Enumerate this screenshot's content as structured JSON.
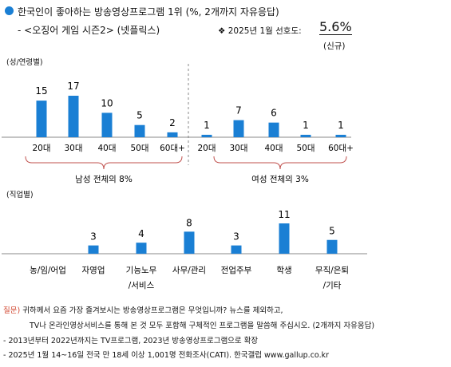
{
  "header": {
    "title": "한국인이 좋아하는 방송영상프로그램 1위",
    "title_note": "(%, 2개까지 자유응답)",
    "subtitle": "- <오징어 게임 시즌2> (넷플릭스)",
    "preference_label": "❖  2025년 1월 선호도:",
    "preference_value": "5.6%",
    "new_label": "(신규)"
  },
  "colors": {
    "bar": "#1a7fd4",
    "brace": "#c0504d",
    "axis": "#888888",
    "question": "#d0452e"
  },
  "chart_data": [
    {
      "type": "bar",
      "section_label": "(성/연령별)",
      "groups": [
        {
          "name": "남성 전체의 8%",
          "categories": [
            "20대",
            "30대",
            "40대",
            "50대",
            "60대+"
          ],
          "values": [
            15,
            17,
            10,
            5,
            2
          ]
        },
        {
          "name": "여성 전체의 3%",
          "categories": [
            "20대",
            "30대",
            "40대",
            "50대",
            "60대+"
          ],
          "values": [
            1,
            7,
            6,
            1,
            1
          ]
        }
      ],
      "ylim": [
        0,
        17
      ]
    },
    {
      "type": "bar",
      "section_label": "(직업별)",
      "categories": [
        [
          "농/임/어업"
        ],
        [
          "자영업"
        ],
        [
          "기능노무",
          "/서비스"
        ],
        [
          "사무/관리"
        ],
        [
          "전업주부"
        ],
        [
          "학생"
        ],
        [
          "무직/은퇴",
          "/기타"
        ]
      ],
      "values": [
        null,
        3,
        4,
        8,
        3,
        11,
        5
      ],
      "ylim": [
        0,
        11
      ]
    }
  ],
  "footer": {
    "question_label": "질문)",
    "question_line1": "귀하께서 요즘 가장 즐겨보시는 방송영상프로그램은 무엇입니까? 뉴스를 제외하고,",
    "question_line2": "TV나 온라인영상서비스를 통해 본 것 모두 포함해 구체적인 프로그램을 말씀해 주십시오. (2개까지 자유응답)",
    "note1": "- 2013년부터 2022년까지는 TV프로그램, 2023년 방송영상프로그램으로 확장",
    "note2": "- 2025년 1월 14~16일 전국 만 18세 이상 1,001명 전화조사(CATI). 한국갤럽 www.gallup.co.kr"
  }
}
